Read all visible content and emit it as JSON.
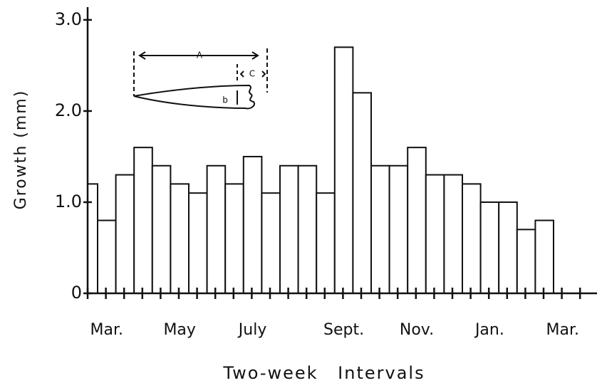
{
  "chart_data": {
    "type": "bar",
    "y_label": "Growth (mm)",
    "x_label": "Two-week Intervals",
    "categories": [
      null,
      "Mar.",
      null,
      null,
      null,
      "May",
      null,
      null,
      null,
      "July",
      null,
      null,
      null,
      null,
      "Sept.",
      null,
      null,
      null,
      "Nov.",
      null,
      null,
      null,
      "Jan.",
      null,
      null,
      null,
      "Mar."
    ],
    "values": [
      1.2,
      0.8,
      1.3,
      1.6,
      1.4,
      1.2,
      1.1,
      1.4,
      1.2,
      1.5,
      1.1,
      1.4,
      1.4,
      1.1,
      2.7,
      2.2,
      1.4,
      1.4,
      1.6,
      1.3,
      1.3,
      1.2,
      1.0,
      1.0,
      0.7,
      0.8,
      null
    ],
    "color": "#ffffff",
    "ylim": [
      0,
      3.14
    ],
    "yticks": [
      0,
      {
        "value": 1,
        "label": "1.0"
      },
      {
        "value": 2,
        "label": "2.0"
      },
      {
        "value": 3,
        "label": "3.0"
      }
    ],
    "inset_labels": [
      "A",
      "C",
      "b"
    ]
  }
}
